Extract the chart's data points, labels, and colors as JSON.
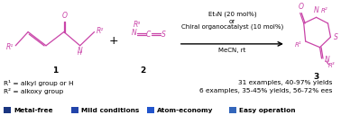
{
  "bg_color": "#ffffff",
  "magenta": "#c944a8",
  "legend_items": [
    {
      "label": "Metal-free",
      "color": "#1a3580"
    },
    {
      "label": "Mild conditions",
      "color": "#2244aa"
    },
    {
      "label": "Atom-economy",
      "color": "#2255cc"
    },
    {
      "label": "Easy operation",
      "color": "#3366bb"
    }
  ],
  "cond1": "Et₃N (20 mol%)",
  "cond2": "or",
  "cond3": "Chiral organocatalyst (10 mol%)",
  "cond4": "MeCN, rt",
  "r1_text": "R¹ = alkyl group or H",
  "r2_text": "R² = alkoxy group",
  "yield1": "31 examples, 40-97% yields",
  "yield2": "6 examples, 35-45% yields, 56-72% ees"
}
